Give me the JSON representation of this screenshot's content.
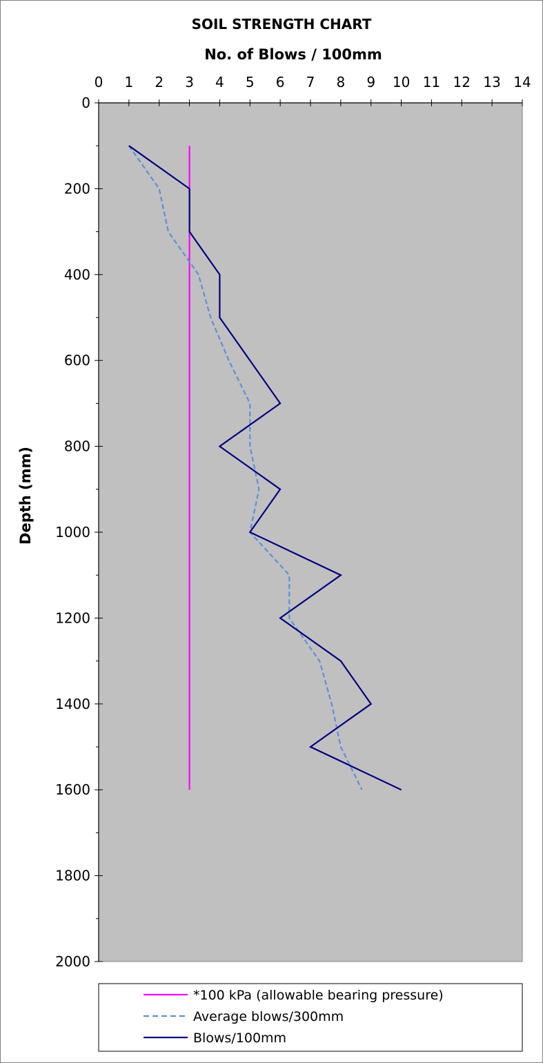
{
  "chart_data": {
    "type": "line",
    "title": "SOIL STRENGTH CHART",
    "xlabel": "No. of Blows / 100mm",
    "ylabel": "Depth (mm)",
    "xlim": [
      0,
      14
    ],
    "ylim": [
      0,
      2000
    ],
    "x_axis_position": "top",
    "y_axis_inverted": true,
    "x_ticks": [
      "0",
      "1",
      "2",
      "3",
      "4",
      "5",
      "6",
      "7",
      "8",
      "9",
      "10",
      "11",
      "12",
      "13",
      "14"
    ],
    "y_ticks": [
      "0",
      "200",
      "400",
      "600",
      "800",
      "1000",
      "1200",
      "1400",
      "1600",
      "1800",
      "2000"
    ],
    "grid": false,
    "plot_background": "#C0C0C0",
    "legend_position": "bottom",
    "series": [
      {
        "name": "*100 kPa (allowable bearing pressure)",
        "color": "#FF00FF",
        "style": "solid",
        "points": [
          [
            3,
            100
          ],
          [
            3,
            1600
          ]
        ]
      },
      {
        "name": "Average blows/300mm",
        "color": "#5B8FD9",
        "style": "dashed",
        "points": [
          [
            1,
            100
          ],
          [
            2,
            200
          ],
          [
            2.3,
            300
          ],
          [
            3.3,
            400
          ],
          [
            3.7,
            500
          ],
          [
            4.3,
            600
          ],
          [
            5,
            700
          ],
          [
            5,
            800
          ],
          [
            5.3,
            900
          ],
          [
            5,
            1000
          ],
          [
            6.3,
            1100
          ],
          [
            6.3,
            1200
          ],
          [
            7.3,
            1300
          ],
          [
            7.7,
            1400
          ],
          [
            8,
            1500
          ],
          [
            8.7,
            1600
          ]
        ]
      },
      {
        "name": "Blows/100mm",
        "color": "#000080",
        "style": "solid",
        "points": [
          [
            1,
            100
          ],
          [
            3,
            200
          ],
          [
            3,
            300
          ],
          [
            4,
            400
          ],
          [
            4,
            500
          ],
          [
            5,
            600
          ],
          [
            6,
            700
          ],
          [
            4,
            800
          ],
          [
            6,
            900
          ],
          [
            5,
            1000
          ],
          [
            8,
            1100
          ],
          [
            6,
            1200
          ],
          [
            8,
            1300
          ],
          [
            9,
            1400
          ],
          [
            7,
            1500
          ],
          [
            10,
            1600
          ]
        ]
      }
    ]
  }
}
